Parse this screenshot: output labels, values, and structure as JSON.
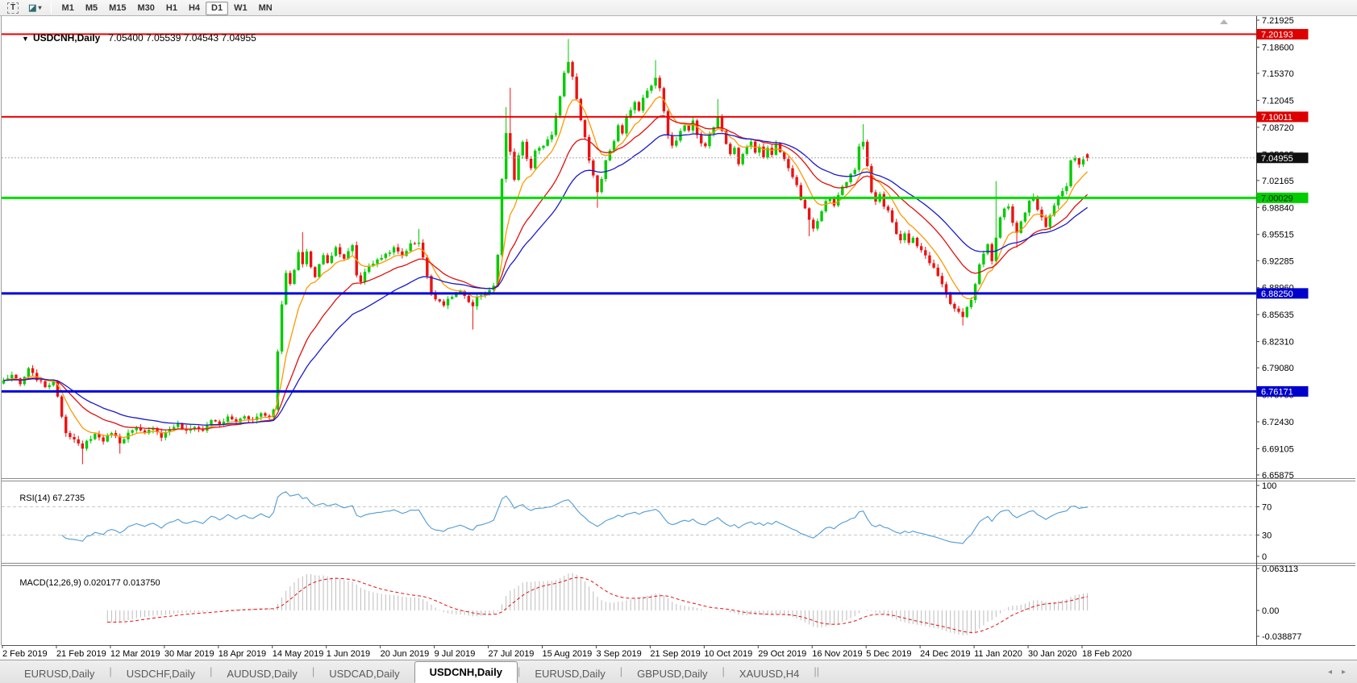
{
  "toolbar": {
    "tool_button": "T",
    "objects_icon_glyph": "◪",
    "dropdown_glyph": "▾",
    "timeframes": [
      "M1",
      "M5",
      "M15",
      "M30",
      "H1",
      "H4",
      "D1",
      "W1",
      "MN"
    ],
    "active_timeframe": "D1"
  },
  "chart": {
    "dropdown_icon": "▼",
    "title": "USDCNH,Daily",
    "title_ohlc": "7.05400 7.05539 7.04543 7.04955",
    "price_ticks": [
      "7.21925",
      "7.18600",
      "7.15370",
      "7.12045",
      "7.08720",
      "7.05395",
      "7.02165",
      "6.98840",
      "6.95515",
      "6.92285",
      "6.88960",
      "6.85635",
      "6.82310",
      "6.79080",
      "6.75755",
      "6.72430",
      "6.69105",
      "6.65875"
    ],
    "date_labels": [
      "2 Feb 2019",
      "21 Feb 2019",
      "12 Mar 2019",
      "30 Mar 2019",
      "18 Apr 2019",
      "14 May 2019",
      "1 Jun 2019",
      "20 Jun 2019",
      "9 Jul 2019",
      "27 Jul 2019",
      "15 Aug 2019",
      "3 Sep 2019",
      "21 Sep 2019",
      "10 Oct 2019",
      "29 Oct 2019",
      "16 Nov 2019",
      "5 Dec 2019",
      "24 Dec 2019",
      "11 Jan 2020",
      "30 Jan 2020",
      "18 Feb 2020"
    ],
    "rsi_label": "RSI(14)",
    "rsi_value": "67.2735",
    "rsi_ticks": [
      "100",
      "70",
      "30",
      "0"
    ],
    "macd_label": "MACD(12,26,9)",
    "macd_values": "0.020177 0.013750",
    "macd_ticks": [
      "0.063113",
      "0.00",
      "-0.038877"
    ]
  },
  "tabs": {
    "items": [
      "EURUSD,Daily",
      "USDCHF,Daily",
      "AUDUSD,Daily",
      "USDCAD,Daily",
      "USDCNH,Daily",
      "EURUSD,Daily",
      "GBPUSD,Daily",
      "XAUUSD,H4"
    ],
    "active_index": 4,
    "scroll_left_glyph": "◂",
    "scroll_right_glyph": "▸"
  },
  "chart_data": {
    "type": "candlestick",
    "symbol": "USDCNH",
    "timeframe": "Daily",
    "last_bar": {
      "open": 7.054,
      "high": 7.05539,
      "low": 7.04543,
      "close": 7.04955
    },
    "bars": 262,
    "y_range": {
      "top": 7.21925,
      "bottom": 6.65875
    },
    "x_label_every_bars": 13,
    "colors": {
      "up": "#00cc00",
      "down": "#ee1111",
      "wick_up": "#00aa00",
      "wick_down": "#cc0000",
      "rsi": "#4f9bd5",
      "macd_hist": "#bcbcbc",
      "macd_signal": "#e01010"
    },
    "moving_averages": [
      {
        "name": "fast",
        "period": 8,
        "method": "ema",
        "color": "#ff9800"
      },
      {
        "name": "medium",
        "period": 20,
        "method": "ema",
        "color": "#e01010"
      },
      {
        "name": "slow",
        "period": 34,
        "method": "ema",
        "color": "#1a1acc"
      }
    ],
    "levels": [
      {
        "value": 7.20193,
        "label": "7.20193",
        "color": "#ee0000",
        "style": "solid",
        "width": 2,
        "badge_bg": "#dd0000",
        "badge_fg": "#ffffff"
      },
      {
        "value": 7.10011,
        "label": "7.10011",
        "color": "#ee0000",
        "style": "solid",
        "width": 2,
        "badge_bg": "#dd0000",
        "badge_fg": "#ffffff"
      },
      {
        "value": 7.04955,
        "label": "7.04955",
        "color": "#aaaaaa",
        "style": "dotted",
        "width": 1,
        "badge_bg": "#101010",
        "badge_fg": "#ffffff"
      },
      {
        "value": 7.00029,
        "label": "7.00029",
        "color": "#00dd00",
        "style": "solid",
        "width": 3,
        "badge_bg": "#00cc00",
        "badge_fg": "#002200"
      },
      {
        "value": 6.8825,
        "label": "6.88250",
        "color": "#0000dd",
        "style": "solid",
        "width": 3,
        "badge_bg": "#0000cc",
        "badge_fg": "#ffffff"
      },
      {
        "value": 6.76171,
        "label": "6.76171",
        "color": "#0000dd",
        "style": "solid",
        "width": 3,
        "badge_bg": "#0000cc",
        "badge_fg": "#ffffff"
      }
    ],
    "close_waypoints": [
      [
        0,
        6.775
      ],
      [
        2,
        6.782
      ],
      [
        4,
        6.77
      ],
      [
        6,
        6.789
      ],
      [
        8,
        6.777
      ],
      [
        10,
        6.768
      ],
      [
        12,
        6.773
      ],
      [
        13,
        6.757
      ],
      [
        14,
        6.731
      ],
      [
        15,
        6.712
      ],
      [
        17,
        6.702
      ],
      [
        19,
        6.69
      ],
      [
        20,
        6.7
      ],
      [
        22,
        6.709
      ],
      [
        24,
        6.701
      ],
      [
        26,
        6.712
      ],
      [
        28,
        6.699
      ],
      [
        30,
        6.71
      ],
      [
        32,
        6.716
      ],
      [
        34,
        6.709
      ],
      [
        36,
        6.718
      ],
      [
        38,
        6.706
      ],
      [
        40,
        6.716
      ],
      [
        42,
        6.721
      ],
      [
        44,
        6.712
      ],
      [
        46,
        6.719
      ],
      [
        48,
        6.713
      ],
      [
        50,
        6.727
      ],
      [
        52,
        6.72
      ],
      [
        54,
        6.73
      ],
      [
        56,
        6.724
      ],
      [
        58,
        6.732
      ],
      [
        60,
        6.726
      ],
      [
        62,
        6.735
      ],
      [
        64,
        6.73
      ],
      [
        65,
        6.741
      ],
      [
        66,
        6.81
      ],
      [
        67,
        6.87
      ],
      [
        68,
        6.909
      ],
      [
        69,
        6.893
      ],
      [
        70,
        6.911
      ],
      [
        71,
        6.933
      ],
      [
        72,
        6.917
      ],
      [
        73,
        6.935
      ],
      [
        74,
        6.915
      ],
      [
        75,
        6.903
      ],
      [
        76,
        6.918
      ],
      [
        77,
        6.929
      ],
      [
        78,
        6.921
      ],
      [
        80,
        6.939
      ],
      [
        82,
        6.926
      ],
      [
        84,
        6.941
      ],
      [
        85,
        6.905
      ],
      [
        86,
        6.897
      ],
      [
        87,
        6.909
      ],
      [
        88,
        6.917
      ],
      [
        90,
        6.923
      ],
      [
        92,
        6.931
      ],
      [
        94,
        6.938
      ],
      [
        96,
        6.929
      ],
      [
        98,
        6.943
      ],
      [
        100,
        6.946
      ],
      [
        101,
        6.927
      ],
      [
        102,
        6.903
      ],
      [
        103,
        6.884
      ],
      [
        104,
        6.877
      ],
      [
        106,
        6.869
      ],
      [
        108,
        6.879
      ],
      [
        110,
        6.885
      ],
      [
        112,
        6.871
      ],
      [
        113,
        6.865
      ],
      [
        114,
        6.879
      ],
      [
        116,
        6.883
      ],
      [
        118,
        6.891
      ],
      [
        119,
        6.93
      ],
      [
        120,
        7.022
      ],
      [
        121,
        7.079
      ],
      [
        122,
        7.057
      ],
      [
        123,
        7.021
      ],
      [
        124,
        7.053
      ],
      [
        125,
        7.069
      ],
      [
        126,
        7.047
      ],
      [
        127,
        7.037
      ],
      [
        128,
        7.059
      ],
      [
        130,
        7.063
      ],
      [
        132,
        7.079
      ],
      [
        134,
        7.126
      ],
      [
        135,
        7.156
      ],
      [
        136,
        7.169
      ],
      [
        137,
        7.149
      ],
      [
        138,
        7.121
      ],
      [
        139,
        7.097
      ],
      [
        140,
        7.075
      ],
      [
        141,
        7.047
      ],
      [
        142,
        7.029
      ],
      [
        143,
        7.007
      ],
      [
        144,
        7.023
      ],
      [
        145,
        7.045
      ],
      [
        146,
        7.057
      ],
      [
        147,
        7.071
      ],
      [
        148,
        7.089
      ],
      [
        149,
        7.081
      ],
      [
        150,
        7.099
      ],
      [
        151,
        7.109
      ],
      [
        152,
        7.119
      ],
      [
        153,
        7.107
      ],
      [
        154,
        7.125
      ],
      [
        155,
        7.131
      ],
      [
        156,
        7.139
      ],
      [
        157,
        7.149
      ],
      [
        158,
        7.135
      ],
      [
        159,
        7.107
      ],
      [
        160,
        7.077
      ],
      [
        161,
        7.063
      ],
      [
        162,
        7.071
      ],
      [
        163,
        7.081
      ],
      [
        164,
        7.091
      ],
      [
        165,
        7.083
      ],
      [
        166,
        7.095
      ],
      [
        167,
        7.079
      ],
      [
        168,
        7.067
      ],
      [
        169,
        7.063
      ],
      [
        170,
        7.079
      ],
      [
        171,
        7.089
      ],
      [
        172,
        7.099
      ],
      [
        173,
        7.083
      ],
      [
        174,
        7.067
      ],
      [
        175,
        7.053
      ],
      [
        176,
        7.061
      ],
      [
        177,
        7.043
      ],
      [
        178,
        7.053
      ],
      [
        179,
        7.064
      ],
      [
        180,
        7.071
      ],
      [
        181,
        7.057
      ],
      [
        182,
        7.065
      ],
      [
        183,
        7.049
      ],
      [
        184,
        7.061
      ],
      [
        185,
        7.053
      ],
      [
        186,
        7.069
      ],
      [
        187,
        7.057
      ],
      [
        188,
        7.047
      ],
      [
        189,
        7.037
      ],
      [
        190,
        7.027
      ],
      [
        191,
        7.017
      ],
      [
        192,
        6.999
      ],
      [
        193,
        6.987
      ],
      [
        194,
        6.973
      ],
      [
        195,
        6.963
      ],
      [
        196,
        6.971
      ],
      [
        197,
        6.985
      ],
      [
        198,
        6.995
      ],
      [
        199,
        7.001
      ],
      [
        200,
        6.989
      ],
      [
        201,
        7.005
      ],
      [
        202,
        7.015
      ],
      [
        203,
        7.021
      ],
      [
        204,
        7.029
      ],
      [
        205,
        7.035
      ],
      [
        206,
        7.063
      ],
      [
        207,
        7.071
      ],
      [
        208,
        7.041
      ],
      [
        209,
        7.009
      ],
      [
        210,
        6.997
      ],
      [
        211,
        7.005
      ],
      [
        212,
        6.991
      ],
      [
        213,
        6.983
      ],
      [
        214,
        6.971
      ],
      [
        215,
        6.957
      ],
      [
        216,
        6.949
      ],
      [
        217,
        6.957
      ],
      [
        218,
        6.945
      ],
      [
        219,
        6.951
      ],
      [
        220,
        6.939
      ],
      [
        221,
        6.935
      ],
      [
        222,
        6.929
      ],
      [
        223,
        6.921
      ],
      [
        224,
        6.915
      ],
      [
        225,
        6.903
      ],
      [
        226,
        6.893
      ],
      [
        227,
        6.881
      ],
      [
        228,
        6.871
      ],
      [
        229,
        6.863
      ],
      [
        230,
        6.859
      ],
      [
        231,
        6.855
      ],
      [
        232,
        6.867
      ],
      [
        233,
        6.875
      ],
      [
        234,
        6.895
      ],
      [
        235,
        6.919
      ],
      [
        236,
        6.931
      ],
      [
        237,
        6.943
      ],
      [
        238,
        6.921
      ],
      [
        239,
        6.951
      ],
      [
        240,
        6.975
      ],
      [
        241,
        6.987
      ],
      [
        242,
        6.991
      ],
      [
        243,
        6.969
      ],
      [
        244,
        6.957
      ],
      [
        245,
        6.971
      ],
      [
        246,
        6.981
      ],
      [
        247,
        6.995
      ],
      [
        248,
        7.001
      ],
      [
        249,
        6.985
      ],
      [
        250,
        6.975
      ],
      [
        251,
        6.965
      ],
      [
        252,
        6.977
      ],
      [
        253,
        6.991
      ],
      [
        254,
        7.001
      ],
      [
        255,
        7.007
      ],
      [
        256,
        7.013
      ],
      [
        257,
        7.045
      ],
      [
        258,
        7.049
      ],
      [
        259,
        7.043
      ],
      [
        260,
        7.047
      ],
      [
        261,
        7.0496
      ]
    ],
    "wick_spikes": [
      {
        "i": 19,
        "low": 6.672
      },
      {
        "i": 28,
        "low": 6.685
      },
      {
        "i": 66,
        "low": 6.742
      },
      {
        "i": 72,
        "high": 6.958
      },
      {
        "i": 100,
        "high": 6.962
      },
      {
        "i": 113,
        "low": 6.838
      },
      {
        "i": 121,
        "high": 7.112
      },
      {
        "i": 122,
        "high": 7.136
      },
      {
        "i": 136,
        "high": 7.196
      },
      {
        "i": 143,
        "low": 6.988
      },
      {
        "i": 157,
        "high": 7.17
      },
      {
        "i": 172,
        "high": 7.122
      },
      {
        "i": 194,
        "low": 6.953
      },
      {
        "i": 207,
        "high": 7.091
      },
      {
        "i": 231,
        "low": 6.843
      },
      {
        "i": 239,
        "high": 7.021
      },
      {
        "i": 244,
        "low": 6.939
      }
    ],
    "indicators": {
      "rsi": {
        "period": 14,
        "last_value": 67.2735,
        "levels": [
          70,
          30
        ],
        "range": [
          0,
          100
        ]
      },
      "macd": {
        "fast": 12,
        "slow": 26,
        "signal": 9,
        "last_main": 0.020177,
        "last_signal": 0.01375,
        "axis_max": 0.063113,
        "axis_min": -0.038877
      }
    }
  }
}
